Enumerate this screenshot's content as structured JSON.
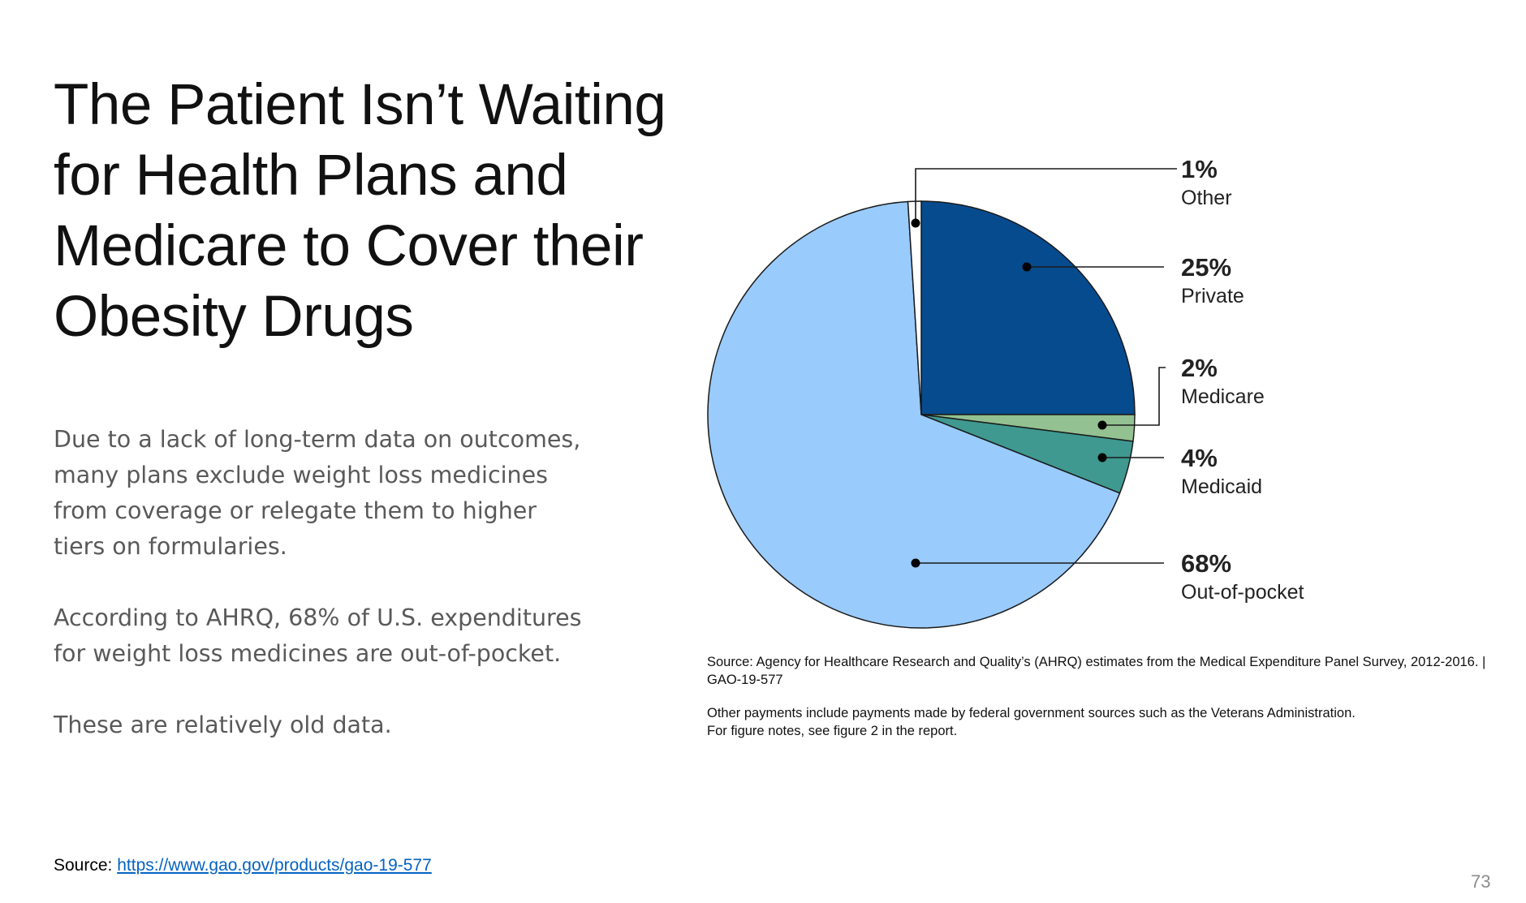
{
  "slide": {
    "title": "The Patient Isn’t Waiting for Health Plans and Medicare to Cover their Obesity Drugs",
    "paragraphs": [
      "Due to a lack of long-term data on outcomes, many plans exclude weight loss medicines from coverage or relegate them to higher tiers on formularies.",
      "According to AHRQ, 68% of U.S. expenditures for weight loss medicines are out-of-pocket.",
      "These are relatively old data."
    ],
    "source_label": "Source: ",
    "source_link": "https://www.gao.gov/products/gao-19-577",
    "page_number": "73"
  },
  "chart_data": {
    "type": "pie",
    "slices": [
      {
        "label": "Private",
        "value": 25,
        "value_label": "25%",
        "color": "#074b8f"
      },
      {
        "label": "Medicare",
        "value": 2,
        "value_label": "2%",
        "color": "#93c191"
      },
      {
        "label": "Medicaid",
        "value": 4,
        "value_label": "4%",
        "color": "#3f9990"
      },
      {
        "label": "Out-of-pocket",
        "value": 68,
        "value_label": "68%",
        "color": "#99cbfd"
      },
      {
        "label": "Other",
        "value": 1,
        "value_label": "1%",
        "color": "#ffffff"
      }
    ],
    "start": "12 o'clock, clockwise",
    "caption_source": "Source: Agency for Healthcare Research and Quality’s (AHRQ) estimates from the Medical Expenditure Panel Survey, 2012-2016.  |  GAO-19-577",
    "caption_note_1": "Other payments include payments made by federal government sources such as the Veterans Administration.",
    "caption_note_2": "For figure notes, see figure 2 in the report."
  }
}
